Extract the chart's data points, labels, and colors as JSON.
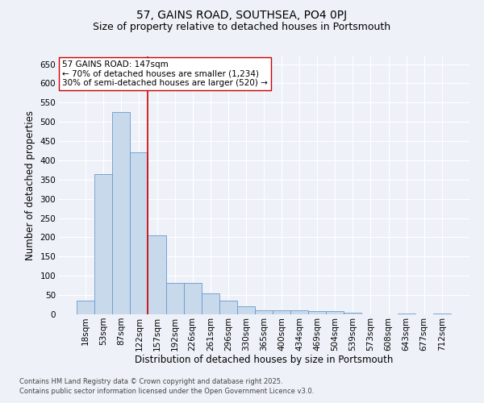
{
  "title": "57, GAINS ROAD, SOUTHSEA, PO4 0PJ",
  "subtitle": "Size of property relative to detached houses in Portsmouth",
  "xlabel": "Distribution of detached houses by size in Portsmouth",
  "ylabel": "Number of detached properties",
  "categories": [
    "18sqm",
    "53sqm",
    "87sqm",
    "122sqm",
    "157sqm",
    "192sqm",
    "226sqm",
    "261sqm",
    "296sqm",
    "330sqm",
    "365sqm",
    "400sqm",
    "434sqm",
    "469sqm",
    "504sqm",
    "539sqm",
    "573sqm",
    "608sqm",
    "643sqm",
    "677sqm",
    "712sqm"
  ],
  "values": [
    35,
    365,
    525,
    420,
    205,
    82,
    82,
    55,
    35,
    20,
    10,
    10,
    10,
    8,
    8,
    5,
    0,
    0,
    3,
    0,
    3
  ],
  "bar_color": "#c9d9ec",
  "bar_edge_color": "#6699cc",
  "vline_color": "#cc0000",
  "annotation_text": "57 GAINS ROAD: 147sqm\n← 70% of detached houses are smaller (1,234)\n30% of semi-detached houses are larger (520) →",
  "annotation_box_facecolor": "#ffffff",
  "annotation_box_edge": "#cc0000",
  "ylim": [
    0,
    670
  ],
  "yticks": [
    0,
    50,
    100,
    150,
    200,
    250,
    300,
    350,
    400,
    450,
    500,
    550,
    600,
    650
  ],
  "title_fontsize": 10,
  "subtitle_fontsize": 9,
  "xlabel_fontsize": 8.5,
  "ylabel_fontsize": 8.5,
  "tick_fontsize": 7.5,
  "annotation_fontsize": 7.5,
  "footnote1": "Contains HM Land Registry data © Crown copyright and database right 2025.",
  "footnote2": "Contains public sector information licensed under the Open Government Licence v3.0.",
  "background_color": "#eef2f8",
  "grid_color": "#ffffff",
  "vline_x_index": 3.5
}
